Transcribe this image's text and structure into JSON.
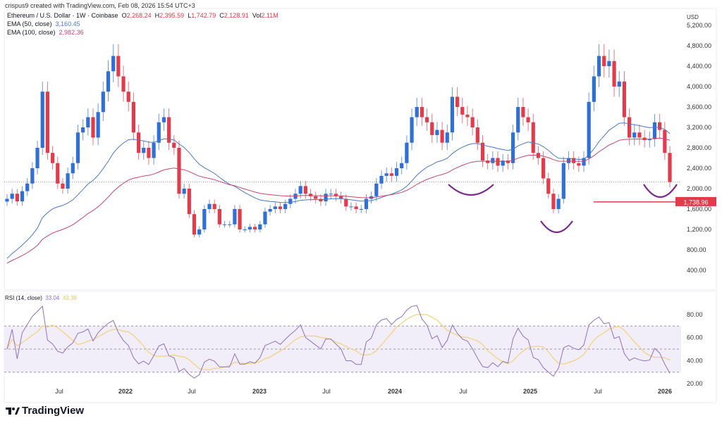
{
  "header": {
    "created_by": "crispus9 created with TradingView.com, Feb 08, 2026 15:54 UTC+3",
    "symbol": "Ethereum / U.S. Dollar · 1W · Coinbase",
    "ohlc": {
      "o_label": "O",
      "o": "2,268.24",
      "h_label": "H",
      "h": "2,395.59",
      "l_label": "L",
      "l": "1,742.79",
      "c_label": "C",
      "c": "2,128.91",
      "vol_label": "Vol",
      "vol": "2.11M"
    },
    "ema50": {
      "label": "EMA (50, close)",
      "value": "3,160.45"
    },
    "ema100": {
      "label": "EMA (100, close)",
      "value": "2,982.36"
    }
  },
  "rsi": {
    "label": "RSI (14, close)",
    "value": "33.04",
    "ma_value": "43.39"
  },
  "colors": {
    "up": "#2f6fd6",
    "down": "#e23b4b",
    "ema50": "#4a78c9",
    "ema100": "#c9456e",
    "rsi": "#8f73c6",
    "rsi_ma": "#f2d27a",
    "rsi_band": "#f1edf9",
    "level": "#e23b4b",
    "pattern": "#7b2a8c"
  },
  "brand": "TradingView",
  "chart_data": {
    "type": "candlestick",
    "interval": "2-week approximation of weekly candles",
    "start": "2021-02",
    "end": "2026-02",
    "closes": [
      1800,
      1900,
      1750,
      1950,
      2100,
      2400,
      2800,
      3900,
      2700,
      2500,
      2100,
      2000,
      2300,
      2500,
      3100,
      3200,
      3400,
      3000,
      3500,
      3900,
      4300,
      4600,
      4200,
      3900,
      3700,
      3100,
      2700,
      2800,
      2600,
      2900,
      3300,
      3400,
      2900,
      2800,
      1900,
      2000,
      1500,
      1100,
      1200,
      1600,
      1700,
      1600,
      1300,
      1300,
      1300,
      1600,
      1200,
      1200,
      1250,
      1200,
      1300,
      1550,
      1600,
      1650,
      1600,
      1700,
      1800,
      1900,
      2050,
      1900,
      1850,
      1800,
      1750,
      1900,
      1900,
      1850,
      1800,
      1650,
      1650,
      1600,
      1600,
      1800,
      1850,
      2100,
      2250,
      2300,
      2250,
      2400,
      2500,
      2900,
      3400,
      3600,
      3400,
      3300,
      3050,
      3150,
      2900,
      3100,
      3800,
      3600,
      3450,
      3400,
      3200,
      2900,
      2550,
      2500,
      2600,
      2450,
      2550,
      2500,
      3100,
      3600,
      3400,
      3300,
      2700,
      2600,
      2200,
      1900,
      1600,
      1800,
      2500,
      2600,
      2500,
      2450,
      2600,
      3700,
      4200,
      4600,
      4400,
      4500,
      4000,
      4100,
      3400,
      3000,
      3100,
      3000,
      2950,
      2970,
      3300,
      3150,
      2700,
      2129
    ],
    "price_axis": {
      "unit": "USD",
      "ticks": [
        "5,200.00",
        "4,800.00",
        "4,400.00",
        "4,000.00",
        "3,600.00",
        "3,200.00",
        "2,800.00",
        "2,400.00",
        "2,000.00",
        "1,600.00",
        "1,200.00",
        "800.00",
        "400.00"
      ],
      "range": [
        400,
        5200
      ]
    },
    "rsi_axis": {
      "ticks": [
        "80.00",
        "60.00",
        "40.00",
        "20.00"
      ],
      "range": [
        20,
        80
      ],
      "levels": [
        70,
        50,
        30
      ]
    },
    "time_axis": [
      {
        "label": "Jul",
        "bold": false
      },
      {
        "label": "2022",
        "bold": true
      },
      {
        "label": "Jul",
        "bold": false
      },
      {
        "label": "2023",
        "bold": true
      },
      {
        "label": "Jul",
        "bold": false
      },
      {
        "label": "2024",
        "bold": true
      },
      {
        "label": "Jul",
        "bold": false
      },
      {
        "label": "2025",
        "bold": true
      },
      {
        "label": "Jul",
        "bold": false
      },
      {
        "label": "2026",
        "bold": true
      }
    ],
    "current_price_line": 2128.91,
    "support_level": {
      "value": 1738.96,
      "label": "1,738.96"
    },
    "annotations": [
      "rounded-bottom-jul-2024",
      "rounded-bottom-apr-2025",
      "rounded-bottom-feb-2026"
    ]
  }
}
